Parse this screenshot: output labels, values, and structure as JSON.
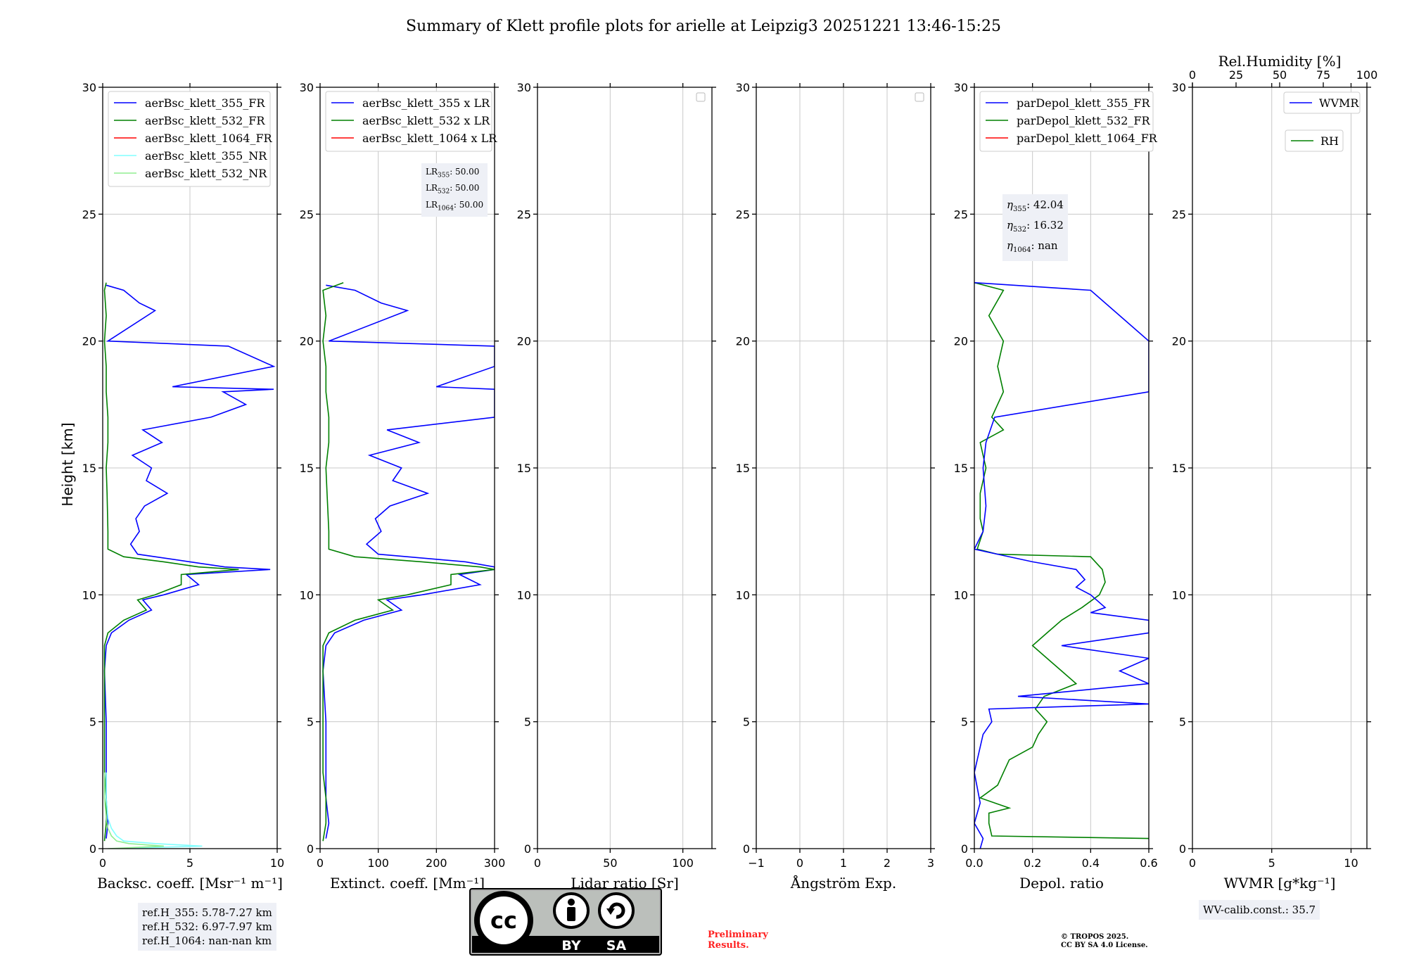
{
  "chart_data": {
    "type": "line",
    "title": "Summary of Klett profile plots for arielle at Leipzig3 20251221 13:46-15:25",
    "shared_ylabel": "Height [km]",
    "ylim": [
      0,
      30
    ],
    "yticks": [
      "0",
      "5",
      "10",
      "15",
      "20",
      "25",
      "30"
    ],
    "panels": [
      {
        "id": "backscatter",
        "xlabel": "Backsc. coeff. [Msr⁻¹ m⁻¹]",
        "xlim": [
          0,
          10
        ],
        "xticks": [
          {
            "v": 0,
            "label": "0"
          },
          {
            "v": 5,
            "label": "5"
          },
          {
            "v": 10,
            "label": "10"
          }
        ],
        "legend": [
          "aerBsc_klett_355_FR",
          "aerBsc_klett_532_FR",
          "aerBsc_klett_1064_FR",
          "aerBsc_klett_355_NR",
          "aerBsc_klett_532_NR"
        ],
        "legend_colors": [
          "#0000ff",
          "#008000",
          "#ff0000",
          "#80ffff",
          "#90ee90"
        ],
        "series": [
          {
            "name": "aerBsc_klett_355_FR",
            "color": "#0000ff",
            "y": [
              0.4,
              1,
              2,
              3,
              5,
              7,
              8,
              8.5,
              9,
              9.4,
              9.8,
              10,
              10.4,
              10.8,
              11,
              11.1,
              11.3,
              11.6,
              12,
              12.5,
              13,
              13.5,
              14,
              14.5,
              15,
              15.5,
              16,
              16.5,
              17,
              17.5,
              18,
              18.1,
              18.2,
              19,
              19.8,
              20,
              21.2,
              21.5,
              22,
              22.2
            ],
            "x": [
              0.2,
              0.3,
              0.2,
              0.2,
              0.2,
              0.1,
              0.2,
              0.5,
              1.5,
              2.8,
              2.3,
              3.5,
              5.5,
              4.8,
              9.6,
              7,
              5,
              2,
              1.6,
              2.1,
              1.9,
              2.4,
              3.7,
              2.5,
              2.8,
              1.7,
              3.4,
              2.3,
              6.2,
              8.2,
              6.9,
              9.8,
              4,
              9.8,
              7.2,
              0.3,
              3,
              2.1,
              1.2,
              0.2
            ]
          },
          {
            "name": "aerBsc_klett_532_FR",
            "color": "#008000",
            "y": [
              0.3,
              1,
              2,
              3,
              5,
              7,
              8,
              8.5,
              9,
              9.4,
              9.8,
              10,
              10.4,
              10.8,
              11,
              11.1,
              11.3,
              11.5,
              11.8,
              12.5,
              14,
              15,
              16,
              17,
              18,
              19,
              20,
              21,
              22,
              22.3
            ],
            "x": [
              0.1,
              0.2,
              0.2,
              0.1,
              0.1,
              0.1,
              0.1,
              0.3,
              1.2,
              2.5,
              2,
              3,
              4.5,
              4.5,
              7.8,
              5.5,
              3.5,
              1.2,
              0.3,
              0.3,
              0.25,
              0.2,
              0.3,
              0.3,
              0.2,
              0.2,
              0.1,
              0.2,
              0.1,
              0.2
            ]
          },
          {
            "name": "aerBsc_klett_355_NR",
            "color": "#80ffff",
            "y": [
              0,
              0.1,
              0.2,
              0.3,
              0.5,
              0.8,
              1.2,
              2,
              3
            ],
            "x": [
              0.5,
              5.7,
              3,
              1.2,
              0.8,
              0.5,
              0.3,
              0.2,
              0.2
            ]
          },
          {
            "name": "aerBsc_klett_532_NR",
            "color": "#90ee90",
            "y": [
              0,
              0.1,
              0.2,
              0.3,
              0.5,
              0.8,
              1.2,
              2,
              3
            ],
            "x": [
              0.3,
              3.5,
              1.5,
              0.8,
              0.5,
              0.3,
              0.2,
              0.1,
              0.1
            ]
          }
        ]
      },
      {
        "id": "extinction",
        "xlabel": "Extinct. coeff. [Mm⁻¹]",
        "xlim": [
          0,
          300
        ],
        "xticks": [
          {
            "v": 0,
            "label": "0"
          },
          {
            "v": 100,
            "label": "100"
          },
          {
            "v": 200,
            "label": "200"
          },
          {
            "v": 300,
            "label": "300"
          }
        ],
        "legend": [
          "aerBsc_klett_355 x LR",
          "aerBsc_klett_532 x LR",
          "aerBsc_klett_1064 x LR"
        ],
        "legend_colors": [
          "#0000ff",
          "#008000",
          "#ff0000"
        ],
        "series": [
          {
            "name": "aerBsc_klett_355 x LR",
            "color": "#0000ff",
            "y": [
              0.4,
              1,
              2,
              3,
              5,
              7,
              8,
              8.5,
              9,
              9.4,
              9.8,
              10,
              10.4,
              10.8,
              11,
              11.1,
              11.3,
              11.6,
              12,
              12.5,
              13,
              13.5,
              14,
              14.5,
              15,
              15.5,
              16,
              16.5,
              17,
              17.5,
              18,
              18.1,
              18.2,
              19,
              19.8,
              20,
              21.2,
              21.5,
              22,
              22.2
            ],
            "x": [
              10,
              15,
              10,
              10,
              10,
              5,
              10,
              25,
              75,
              140,
              115,
              175,
              275,
              240,
              300,
              300,
              250,
              100,
              80,
              105,
              95,
              120,
              185,
              125,
              140,
              85,
              170,
              115,
              300,
              300,
              300,
              300,
              200,
              300,
              300,
              15,
              150,
              105,
              60,
              10
            ]
          },
          {
            "name": "aerBsc_klett_532 x LR",
            "color": "#008000",
            "y": [
              0.3,
              1,
              2,
              3,
              5,
              7,
              8,
              8.5,
              9,
              9.4,
              9.8,
              10,
              10.4,
              10.8,
              11,
              11.1,
              11.3,
              11.5,
              11.8,
              12.5,
              14,
              15,
              16,
              17,
              18,
              19,
              20,
              21,
              22,
              22.3
            ],
            "x": [
              5,
              10,
              10,
              5,
              5,
              5,
              5,
              15,
              60,
              125,
              100,
              150,
              225,
              225,
              300,
              275,
              175,
              60,
              15,
              15,
              12,
              10,
              15,
              15,
              10,
              10,
              5,
              10,
              5,
              40
            ]
          }
        ]
      },
      {
        "id": "lidar_ratio",
        "xlabel": "Lidar ratio [Sr]",
        "xlim": [
          0,
          120
        ],
        "xticks": [
          {
            "v": 0,
            "label": "0"
          },
          {
            "v": 50,
            "label": "50"
          },
          {
            "v": 100,
            "label": "100"
          }
        ],
        "legend": [],
        "series": []
      },
      {
        "id": "angstrom",
        "xlabel": "Ångström Exp.",
        "xlim": [
          -1,
          3
        ],
        "xticks": [
          {
            "v": -1,
            "label": "−1"
          },
          {
            "v": 0,
            "label": "0"
          },
          {
            "v": 1,
            "label": "1"
          },
          {
            "v": 2,
            "label": "2"
          },
          {
            "v": 3,
            "label": "3"
          }
        ],
        "legend": [],
        "series": []
      },
      {
        "id": "depol",
        "xlabel": "Depol. ratio",
        "xlim": [
          0,
          0.6
        ],
        "xticks": [
          {
            "v": 0,
            "label": "0.0"
          },
          {
            "v": 0.2,
            "label": "0.2"
          },
          {
            "v": 0.4,
            "label": "0.4"
          },
          {
            "v": 0.6,
            "label": "0.6"
          }
        ],
        "legend": [
          "parDepol_klett_355_FR",
          "parDepol_klett_532_FR",
          "parDepol_klett_1064_FR"
        ],
        "legend_colors": [
          "#0000ff",
          "#008000",
          "#ff0000"
        ],
        "series": [
          {
            "name": "parDepol_klett_532_FR",
            "color": "#008000",
            "y": [
              0.4,
              0.5,
              1,
              1.4,
              1.6,
              2,
              2.5,
              3,
              3.5,
              4,
              4.5,
              5,
              5.5,
              6,
              6.5,
              7,
              7.5,
              8,
              8.5,
              9,
              9.5,
              10,
              10.5,
              11,
              11.5,
              11.6,
              11.8,
              12.5,
              13,
              14,
              15,
              15.5,
              16,
              16.5,
              17,
              18,
              19,
              20,
              21,
              22,
              22.3
            ],
            "x": [
              0.6,
              0.06,
              0.05,
              0.05,
              0.12,
              0.02,
              0.08,
              0.1,
              0.12,
              0.2,
              0.22,
              0.25,
              0.21,
              0.24,
              0.35,
              0.3,
              0.25,
              0.2,
              0.25,
              0.3,
              0.37,
              0.43,
              0.45,
              0.44,
              0.4,
              0.08,
              0.01,
              0.03,
              0.02,
              0.02,
              0.04,
              0.03,
              0.02,
              0.1,
              0.06,
              0.1,
              0.08,
              0.1,
              0.05,
              0.1,
              0.0
            ]
          },
          {
            "name": "parDepol_klett_355_FR",
            "color": "#0000ff",
            "y": [
              0,
              0.4,
              1,
              1.8,
              3,
              4.5,
              5,
              5.5,
              5.7,
              6,
              6.5,
              7,
              7.5,
              8,
              8.5,
              9,
              9.3,
              9.5,
              10,
              10.3,
              10.6,
              11,
              11.3,
              11.6,
              11.8,
              12.5,
              13.5,
              15,
              16,
              17,
              18,
              19,
              20,
              21,
              22,
              22.3
            ],
            "x": [
              0.02,
              0.03,
              0,
              0.02,
              0,
              0.03,
              0.06,
              0.05,
              0.6,
              0.15,
              0.6,
              0.5,
              0.6,
              0.3,
              0.6,
              0.6,
              0.4,
              0.45,
              0.4,
              0.35,
              0.38,
              0.35,
              0.2,
              0.08,
              0.0,
              0.03,
              0.04,
              0.03,
              0.04,
              0.07,
              0.6,
              0.6,
              0.6,
              0.5,
              0.4,
              0.0
            ]
          }
        ]
      },
      {
        "id": "wvmr",
        "xlabel": "WVMR [g*kg⁻¹]",
        "xlim": [
          0,
          11
        ],
        "xticks": [
          {
            "v": 0,
            "label": "0"
          },
          {
            "v": 5,
            "label": "5"
          },
          {
            "v": 10,
            "label": "10"
          }
        ],
        "top_xlabel": "Rel.Humidity [%]",
        "top_xlim": [
          0,
          100
        ],
        "top_xticks": [
          {
            "v": 0,
            "label": "0"
          },
          {
            "v": 25,
            "label": "25"
          },
          {
            "v": 50,
            "label": "50"
          },
          {
            "v": 75,
            "label": "75"
          },
          {
            "v": 100,
            "label": "100"
          }
        ],
        "legend": [
          "WVMR",
          "RH"
        ],
        "legend_colors": [
          "#0000ff",
          "#008000"
        ],
        "series": []
      }
    ],
    "annotations": {
      "lr_box": [
        {
          "sym": "LR",
          "sub": "355",
          "value": ": 50.00"
        },
        {
          "sym": "LR",
          "sub": "532",
          "value": ": 50.00"
        },
        {
          "sym": "LR",
          "sub": "1064",
          "value": ": 50.00"
        }
      ],
      "eta_box": [
        {
          "sym": "η",
          "sub": "355",
          "value": ": 42.04"
        },
        {
          "sym": "η",
          "sub": "532",
          "value": ": 16.32"
        },
        {
          "sym": "η",
          "sub": "1064",
          "value": ": nan"
        }
      ],
      "refh_box": [
        "ref.H_355: 5.78-7.27 km",
        "ref.H_532: 6.97-7.97 km",
        "ref.H_1064: nan-nan km"
      ],
      "wv_calib": "WV-calib.const.: 35.7",
      "preliminary": [
        "Preliminary",
        "Results."
      ],
      "copyright": [
        "© TROPOS 2025.",
        "CC BY SA 4.0 License."
      ],
      "license_badge": {
        "by": "BY",
        "sa": "SA",
        "logo": "cc"
      }
    }
  }
}
